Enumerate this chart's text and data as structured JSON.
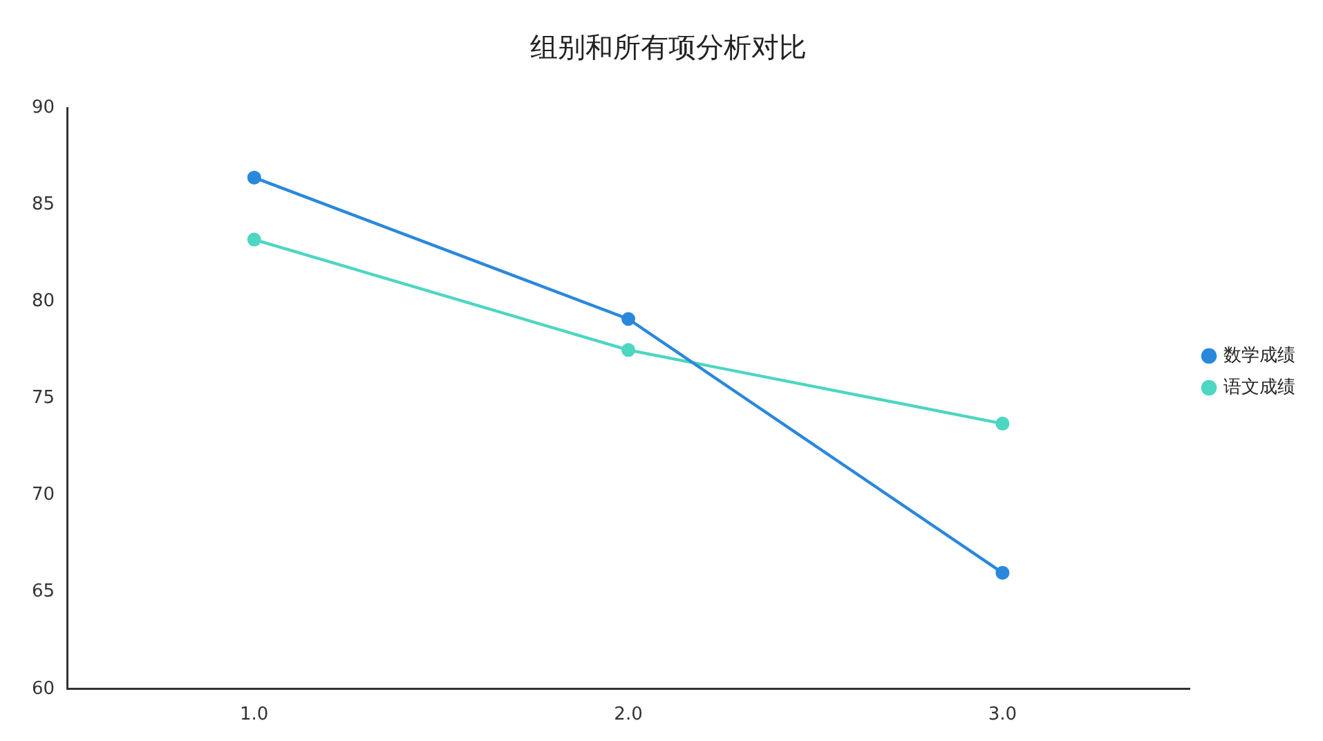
{
  "chart_data": {
    "type": "line",
    "title": "组别和所有项分析对比",
    "categories": [
      "1.0",
      "2.0",
      "3.0"
    ],
    "series": [
      {
        "name": "数学成绩",
        "color": "#2a88dc",
        "values": [
          86.4,
          79.1,
          66.0
        ]
      },
      {
        "name": "语文成绩",
        "color": "#4dd6c2",
        "values": [
          83.2,
          77.5,
          73.7
        ]
      }
    ],
    "ylim": [
      60,
      90
    ],
    "yticks": [
      60,
      65,
      70,
      75,
      80,
      85,
      90
    ],
    "grid": false,
    "legend": "right",
    "marker": "circle",
    "line_style": "solid"
  }
}
